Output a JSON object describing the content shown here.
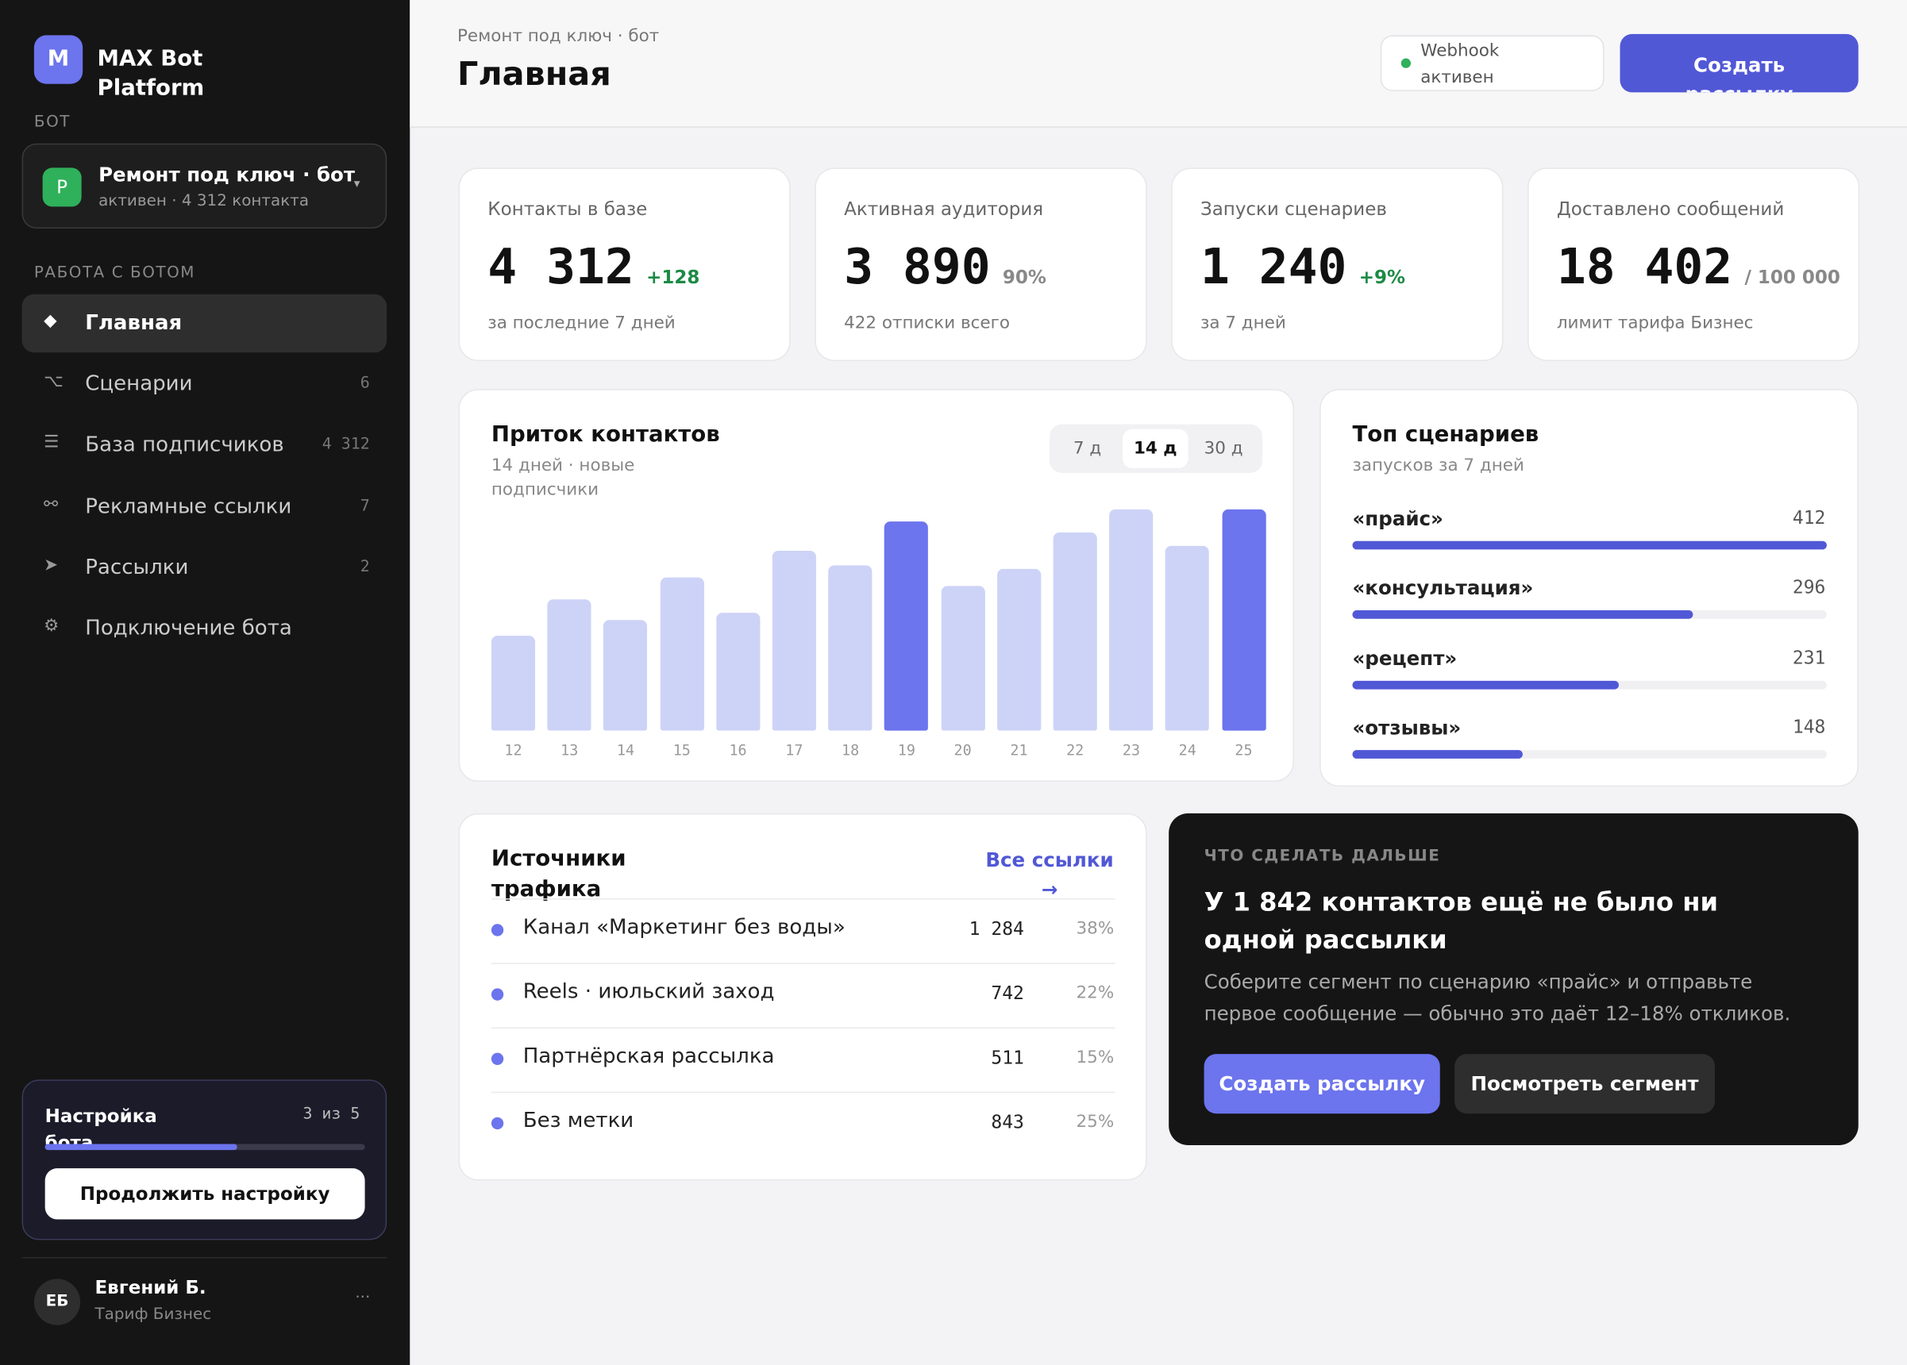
{
  "sidebar": {
    "logo": "M",
    "brand": "MAX Bot Platform",
    "bot_section": "БОТ",
    "bot": {
      "avatar": "Р",
      "name": "Ремонт под ключ · бот",
      "status": "активен · 4 312 контакта",
      "caret": "▾"
    },
    "nav_section": "РАБОТА С БОТОМ",
    "nav": [
      {
        "icon": "◆",
        "label": "Главная"
      },
      {
        "icon": "⌥",
        "label": "Сценарии",
        "count": "6"
      },
      {
        "icon": "☰",
        "label": "База подписчиков",
        "count": "4 312"
      },
      {
        "icon": "⚯",
        "label": "Рекламные ссылки",
        "count": "7"
      },
      {
        "icon": "➤",
        "label": "Рассылки",
        "count": "2"
      },
      {
        "icon": "⚙",
        "label": "Подключение бота"
      }
    ],
    "setup": {
      "title": "Настройка бота",
      "progress": "3 из 5",
      "done": 3,
      "total": 5,
      "button": "Продолжить настройку"
    },
    "user": {
      "initials": "ЕБ",
      "name": "Евгений Б.",
      "plan": "Тариф Бизнес",
      "menu": "···"
    }
  },
  "header": {
    "breadcrumb": "Ремонт под ключ · бот",
    "title": "Главная",
    "webhook": "Webhook активен",
    "button": "Создать рассылку"
  },
  "kpis": [
    {
      "label": "Контакты в базе",
      "value": "4 312",
      "delta": "+128",
      "note": "за последние 7 дней"
    },
    {
      "label": "Активная аудитория",
      "value": "3 890",
      "delta": "90%",
      "note": "422 отписки всего"
    },
    {
      "label": "Запуски сценариев",
      "value": "1 240",
      "delta": "+9%",
      "note": "за 7 дней"
    },
    {
      "label": "Доставлено сообщений",
      "value": "18 402",
      "delta": "/ 100 000",
      "note": "лимит тарифа Бизнес"
    }
  ],
  "chart_data": {
    "type": "bar",
    "title": "Приток контактов",
    "subtitle": "14 дней · новые подписчики",
    "ranges": [
      "7 д",
      "14 д",
      "30 д"
    ],
    "categories": [
      "12",
      "13",
      "14",
      "15",
      "16",
      "17",
      "18",
      "19",
      "20",
      "21",
      "22",
      "23",
      "24",
      "25"
    ],
    "values": [
      78,
      108,
      91,
      126,
      97,
      148,
      136,
      172,
      119,
      133,
      163,
      182,
      152,
      182
    ],
    "colors": [
      "#cdd3f7",
      "#cdd3f7",
      "#cdd3f7",
      "#cdd3f7",
      "#cdd3f7",
      "#cdd3f7",
      "#cdd3f7",
      "#6c74ee",
      "#cdd3f7",
      "#cdd3f7",
      "#cdd3f7",
      "#cdd3f7",
      "#cdd3f7",
      "#6c74ee"
    ]
  },
  "top": {
    "title": "Топ сценариев",
    "subtitle": "запусков за 7 дней",
    "color": "#5158d6",
    "items": [
      {
        "name": "«прайс»",
        "value": 412
      },
      {
        "name": "«консультация»",
        "value": 296
      },
      {
        "name": "«рецепт»",
        "value": 231
      },
      {
        "name": "«отзывы»",
        "value": 148
      }
    ]
  },
  "sources": {
    "title": "Источники трафика",
    "link": "Все ссылки →",
    "rows": [
      {
        "name": "Канал «Маркетинг без воды»",
        "count": "1 284",
        "share": "38%"
      },
      {
        "name": "Reels · июльский заход",
        "count": "742",
        "share": "22%"
      },
      {
        "name": "Партнёрская рассылка",
        "count": "511",
        "share": "15%"
      },
      {
        "name": "Без метки",
        "count": "843",
        "share": "25%"
      }
    ]
  },
  "next": {
    "label": "ЧТО СДЕЛАТЬ ДАЛЬШЕ",
    "title": "У 1 842 контактов ещё не было ни одной рассылки",
    "text": "Соберите сегмент по сценарию «прайс» и отправьте первое сообщение — обычно это даёт 12–18% откликов.",
    "primary": "Создать рассылку",
    "secondary": "Посмотреть сегмент"
  }
}
